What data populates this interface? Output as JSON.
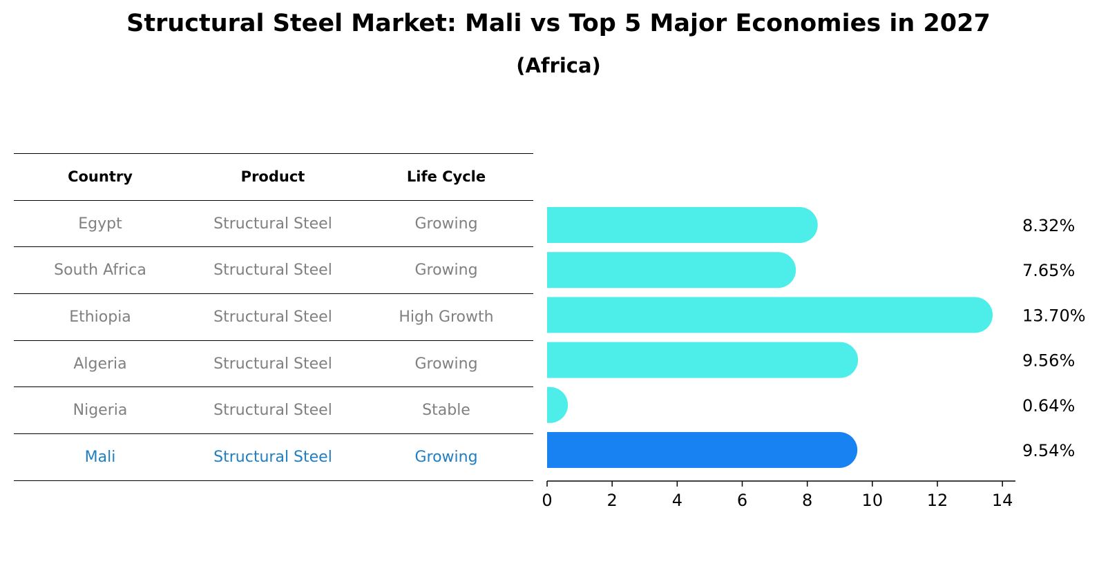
{
  "title": "Structural Steel Market: Mali vs Top 5 Major Economies in 2027",
  "subtitle": "(Africa)",
  "table": {
    "headers": [
      "Country",
      "Product",
      "Life Cycle"
    ],
    "rows": [
      [
        "Egypt",
        "Structural Steel",
        "Growing"
      ],
      [
        "South Africa",
        "Structural Steel",
        "Growing"
      ],
      [
        "Ethiopia",
        "Structural Steel",
        "High Growth"
      ],
      [
        "Algeria",
        "Structural Steel",
        "Growing"
      ],
      [
        "Nigeria",
        "Structural Steel",
        "Stable"
      ],
      [
        "Mali",
        "Structural Steel",
        "Growing"
      ]
    ],
    "highlight_row": 5
  },
  "colors": {
    "bar": "#4deeea",
    "highlight_bar": "#1982f2",
    "highlight_text": "#1f7ec4",
    "muted_text": "#808080"
  },
  "chart_data": {
    "type": "bar",
    "orientation": "horizontal",
    "categories": [
      "Egypt",
      "South Africa",
      "Ethiopia",
      "Algeria",
      "Nigeria",
      "Mali"
    ],
    "values": [
      8.32,
      7.65,
      13.7,
      9.56,
      0.64,
      9.54
    ],
    "value_labels": [
      "8.32%",
      "7.65%",
      "13.70%",
      "9.56%",
      "0.64%",
      "9.54%"
    ],
    "highlight_index": 5,
    "xlim": [
      0,
      14.4
    ],
    "xticks": [
      0,
      2,
      4,
      6,
      8,
      10,
      12,
      14
    ],
    "xtick_labels": [
      "0",
      "2",
      "4",
      "6",
      "8",
      "10",
      "12",
      "14"
    ],
    "xlabel": "",
    "ylabel": "",
    "grid": false
  }
}
